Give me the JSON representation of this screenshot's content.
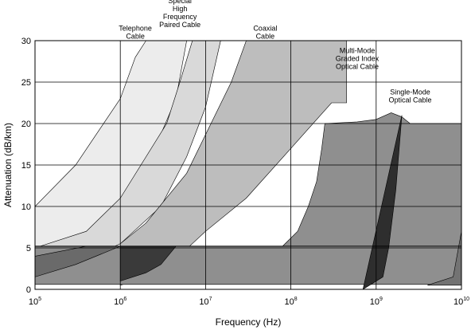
{
  "chart_data": {
    "type": "area",
    "title": "",
    "xlabel": "Frequency (Hz)",
    "ylabel": "Attenuation (dB/km)",
    "x_scale": "log",
    "xlim": [
      100000,
      10000000000
    ],
    "ylim": [
      0,
      30
    ],
    "grid": true,
    "x_ticks": [
      {
        "base": "10",
        "exp": "5",
        "value": 100000
      },
      {
        "base": "10",
        "exp": "6",
        "value": 1000000
      },
      {
        "base": "10",
        "exp": "7",
        "value": 10000000
      },
      {
        "base": "10",
        "exp": "8",
        "value": 100000000
      },
      {
        "base": "10",
        "exp": "9",
        "value": 1000000000
      },
      {
        "base": "10",
        "exp": "10",
        "value": 10000000000
      }
    ],
    "y_ticks": [
      "0",
      "5",
      "10",
      "15",
      "20",
      "25",
      "30"
    ],
    "y_tick_values": [
      0,
      5,
      10,
      15,
      20,
      25,
      30
    ],
    "reference_line_y": 5.2,
    "annotations": [
      {
        "lines": [
          "Telephone",
          "Cable"
        ],
        "x": 1500000,
        "y": 31.2
      },
      {
        "lines": [
          "Special",
          "High",
          "Frequency",
          "Paired Cable"
        ],
        "x": 5000000,
        "y": 34.5
      },
      {
        "lines": [
          "Coaxial",
          "Cable"
        ],
        "x": 50000000,
        "y": 31.2
      },
      {
        "lines": [
          "Multi-Mode",
          "Graded Index",
          "Optical Cable"
        ],
        "x": 600000000,
        "y": 28.5
      },
      {
        "lines": [
          "Single-Mode",
          "Optical Cable"
        ],
        "x": 2500000000,
        "y": 23.5
      }
    ],
    "series": [
      {
        "color": "#ececec",
        "upper": [
          [
            100000,
            10
          ],
          [
            300000,
            15
          ],
          [
            1000000,
            23
          ],
          [
            1500000,
            28
          ],
          [
            2000000,
            30
          ]
        ],
        "lower": [
          [
            100000,
            4
          ],
          [
            400000,
            6
          ],
          [
            1000000,
            10
          ],
          [
            2000000,
            14.5
          ],
          [
            4500000,
            23
          ],
          [
            6000000,
            30
          ]
        ]
      },
      {
        "color": "#d9d9d9",
        "upper": [
          [
            100000,
            5
          ],
          [
            400000,
            7
          ],
          [
            1000000,
            11
          ],
          [
            3500000,
            20
          ],
          [
            5000000,
            25
          ],
          [
            7000000,
            30
          ]
        ],
        "lower": [
          [
            100000,
            1.5
          ],
          [
            300000,
            3
          ],
          [
            1000000,
            5.5
          ],
          [
            3000000,
            10
          ],
          [
            6000000,
            16
          ],
          [
            10000000,
            22
          ],
          [
            15000000,
            30
          ]
        ]
      },
      {
        "color": "#bdbdbd",
        "upper": [
          [
            1000000,
            5.5
          ],
          [
            2000000,
            8
          ],
          [
            6000000,
            14
          ],
          [
            20000000,
            25
          ],
          [
            30000000,
            30
          ],
          [
            450000000,
            30
          ],
          [
            450000000,
            22.5
          ]
        ],
        "lower": [
          [
            1000000,
            0.5
          ],
          [
            3000000,
            2
          ],
          [
            10000000,
            7
          ],
          [
            30000000,
            11
          ],
          [
            100000000,
            17
          ],
          [
            300000000,
            22.5
          ]
        ]
      },
      {
        "color": "#8f8f8f",
        "upper": [
          [
            100000,
            5.2
          ],
          [
            80000000,
            5.2
          ],
          [
            120000000,
            7
          ],
          [
            160000000,
            10
          ],
          [
            200000000,
            13
          ],
          [
            230000000,
            17
          ],
          [
            250000000,
            20
          ],
          [
            600000000,
            20.2
          ],
          [
            1000000000,
            20.5
          ],
          [
            1500000000,
            21.3
          ],
          [
            2000000000,
            20.8
          ],
          [
            2500000000,
            20
          ],
          [
            10000000000,
            20
          ]
        ],
        "lower": [
          [
            100000,
            0.6
          ],
          [
            10000000000,
            0.6
          ]
        ]
      },
      {
        "color": "#6a6a6a",
        "upper": [
          [
            100000,
            4
          ],
          [
            400000,
            5.2
          ],
          [
            1000000,
            5.2
          ],
          [
            3000000,
            5.2
          ],
          [
            1000000,
            5.2
          ]
        ],
        "lower": [
          [
            100000,
            1.5
          ],
          [
            300000,
            3
          ],
          [
            1000000,
            5.2
          ]
        ]
      },
      {
        "color": "#3a3a3a",
        "upper": [
          [
            1000000,
            5.2
          ],
          [
            4500000,
            5.2
          ]
        ],
        "lower": [
          [
            1000000,
            1
          ],
          [
            2000000,
            2
          ],
          [
            3000000,
            3
          ],
          [
            4500000,
            5.2
          ]
        ]
      },
      {
        "color": "#2e2e2e",
        "upper": [
          [
            700000000,
            0
          ],
          [
            1200000000,
            1.5
          ],
          [
            1400000000,
            5
          ],
          [
            1700000000,
            12
          ],
          [
            2000000000,
            21
          ]
        ],
        "lower": [
          [
            700000000,
            0
          ]
        ]
      },
      {
        "color": "#737373",
        "upper": [
          [
            4000000000,
            0.5
          ],
          [
            8000000000,
            1.5
          ],
          [
            10000000000,
            7
          ]
        ],
        "lower": [
          [
            4000000000,
            0.5
          ],
          [
            10000000000,
            0.5
          ]
        ]
      }
    ]
  }
}
